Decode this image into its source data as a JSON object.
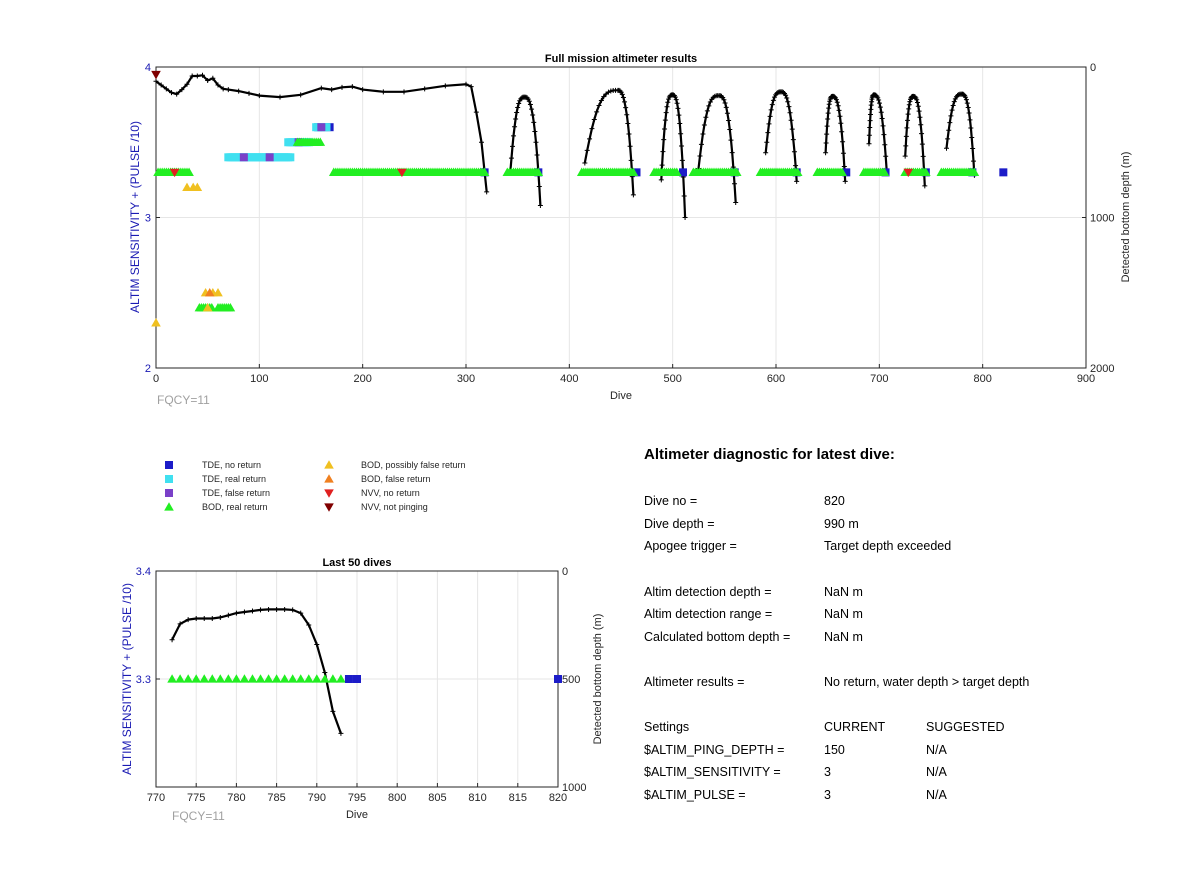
{
  "chart_data": [
    {
      "type": "scatter",
      "title": "Full mission altimeter results",
      "xlabel": "Dive",
      "ylabel": "ALTIM SENSITIVITY + (PULSE /10)",
      "y2label": "Detected bottom depth (m)",
      "xlim": [
        0,
        900
      ],
      "ylim": [
        2,
        4
      ],
      "y2lim": [
        0,
        2000
      ],
      "y2_reversed": true,
      "xticks": [
        "0",
        "100",
        "200",
        "300",
        "400",
        "500",
        "600",
        "700",
        "800",
        "900"
      ],
      "yticks": [
        "2",
        "3",
        "4"
      ],
      "y2ticks": [
        "0",
        "1000",
        "2000"
      ],
      "grid": true,
      "annotation": "FQCY=11",
      "series": [
        {
          "name": "TDE, no return",
          "color": "#1c1cc8",
          "marker": "square",
          "points": [
            [
              157,
              3.6
            ],
            [
              168,
              3.6
            ],
            [
              318,
              3.3
            ],
            [
              370,
              3.3
            ],
            [
              465,
              3.3
            ],
            [
              510,
              3.3
            ],
            [
              560,
              3.3
            ],
            [
              620,
              3.3
            ],
            [
              668,
              3.3
            ],
            [
              706,
              3.3
            ],
            [
              745,
              3.3
            ],
            [
              790,
              3.3
            ],
            [
              820,
              3.3
            ]
          ]
        },
        {
          "name": "TDE, real return",
          "color": "#40e0f0",
          "marker": "square",
          "x_ranges": [
            [
              70,
              130,
              3.4
            ],
            [
              128,
              148,
              3.5
            ],
            [
              155,
              165,
              3.6
            ]
          ]
        },
        {
          "name": "TDE, false return",
          "color": "#7a40c8",
          "marker": "square",
          "points": [
            [
              85,
              3.4
            ],
            [
              110,
              3.4
            ],
            [
              138,
              3.5
            ],
            [
              160,
              3.6
            ]
          ]
        },
        {
          "name": "BOD, real return",
          "color": "#22ee22",
          "marker": "triangle-up",
          "x_ranges": [
            [
              2,
              33,
              3.3
            ],
            [
              42,
              55,
              2.4
            ],
            [
              60,
              72,
              2.4
            ],
            [
              137,
              160,
              3.5
            ],
            [
              172,
              318,
              3.3
            ],
            [
              340,
              370,
              3.3
            ],
            [
              412,
              462,
              3.3
            ],
            [
              482,
              505,
              3.3
            ],
            [
              520,
              562,
              3.3
            ],
            [
              585,
              622,
              3.3
            ],
            [
              640,
              665,
              3.3
            ],
            [
              685,
              706,
              3.3
            ],
            [
              725,
              745,
              3.3
            ],
            [
              760,
              793,
              3.3
            ]
          ]
        },
        {
          "name": "BOD, possibly false return",
          "color": "#f0c020",
          "marker": "triangle-up",
          "points": [
            [
              0,
              2.3
            ],
            [
              30,
              3.2
            ],
            [
              36,
              3.2
            ],
            [
              40,
              3.2
            ],
            [
              48,
              2.5
            ],
            [
              55,
              2.5
            ],
            [
              60,
              2.5
            ],
            [
              50,
              2.4
            ]
          ]
        },
        {
          "name": "BOD, false return",
          "color": "#f08020",
          "marker": "triangle-up",
          "points": [
            [
              52,
              2.5
            ]
          ]
        },
        {
          "name": "NVV, no return",
          "color": "#e02020",
          "marker": "triangle-down",
          "points": [
            [
              18,
              3.3
            ],
            [
              238,
              3.3
            ],
            [
              728,
              3.3
            ]
          ]
        },
        {
          "name": "NVV, not pinging",
          "color": "#800000",
          "marker": "triangle-down",
          "points": [
            [
              0,
              3.95
            ]
          ]
        }
      ],
      "depth_track": {
        "axis": "y2",
        "unit": "m",
        "surface_points": [
          [
            0,
            95
          ],
          [
            5,
            120
          ],
          [
            10,
            145
          ],
          [
            15,
            170
          ],
          [
            20,
            180
          ],
          [
            25,
            150
          ],
          [
            30,
            115
          ],
          [
            35,
            60
          ],
          [
            40,
            60
          ],
          [
            45,
            55
          ],
          [
            50,
            90
          ],
          [
            55,
            75
          ],
          [
            60,
            120
          ],
          [
            65,
            145
          ],
          [
            70,
            150
          ],
          [
            80,
            160
          ],
          [
            90,
            175
          ],
          [
            100,
            190
          ],
          [
            120,
            200
          ],
          [
            140,
            185
          ],
          [
            160,
            140
          ],
          [
            170,
            150
          ],
          [
            180,
            135
          ],
          [
            190,
            130
          ],
          [
            200,
            150
          ],
          [
            220,
            165
          ],
          [
            240,
            165
          ],
          [
            260,
            145
          ],
          [
            280,
            125
          ],
          [
            300,
            115
          ],
          [
            305,
            130
          ],
          [
            310,
            300
          ],
          [
            315,
            500
          ],
          [
            320,
            830
          ]
        ],
        "dives": [
          {
            "start": 343,
            "peak_x": 357,
            "peak_depth": 200,
            "end": 372,
            "max_depth": 920
          },
          {
            "start": 415,
            "peak_x": 447,
            "peak_depth": 155,
            "end": 462,
            "max_depth": 850
          },
          {
            "start": 489,
            "peak_x": 500,
            "peak_depth": 185,
            "end": 512,
            "max_depth": 1000
          },
          {
            "start": 525,
            "peak_x": 545,
            "peak_depth": 190,
            "end": 561,
            "max_depth": 900
          },
          {
            "start": 590,
            "peak_x": 605,
            "peak_depth": 165,
            "end": 620,
            "max_depth": 760
          },
          {
            "start": 648,
            "peak_x": 655,
            "peak_depth": 195,
            "end": 667,
            "max_depth": 760
          },
          {
            "start": 690,
            "peak_x": 695,
            "peak_depth": 185,
            "end": 707,
            "max_depth": 680
          },
          {
            "start": 725,
            "peak_x": 733,
            "peak_depth": 195,
            "end": 744,
            "max_depth": 790
          },
          {
            "start": 765,
            "peak_x": 780,
            "peak_depth": 180,
            "end": 792,
            "max_depth": 720
          }
        ]
      }
    },
    {
      "type": "scatter",
      "title": "Last 50 dives",
      "xlabel": "Dive",
      "ylabel": "ALTIM SENSITIVITY + (PULSE /10)",
      "y2label": "Detected bottom depth (m)",
      "xlim": [
        770,
        820
      ],
      "ylim": [
        3.2,
        3.4
      ],
      "y2lim": [
        0,
        1000
      ],
      "y2_reversed": true,
      "xticks": [
        "770",
        "775",
        "780",
        "785",
        "790",
        "795",
        "800",
        "805",
        "810",
        "815",
        "820"
      ],
      "yticks": [
        "3.3",
        "3.4"
      ],
      "y2ticks": [
        "0",
        "500",
        "1000"
      ],
      "grid": true,
      "annotation": "FQCY=11",
      "series": [
        {
          "name": "BOD, real return",
          "color": "#22ee22",
          "marker": "triangle-up",
          "points": [
            [
              772,
              3.3
            ],
            [
              773,
              3.3
            ],
            [
              774,
              3.3
            ],
            [
              775,
              3.3
            ],
            [
              776,
              3.3
            ],
            [
              777,
              3.3
            ],
            [
              778,
              3.3
            ],
            [
              779,
              3.3
            ],
            [
              780,
              3.3
            ],
            [
              781,
              3.3
            ],
            [
              782,
              3.3
            ],
            [
              783,
              3.3
            ],
            [
              784,
              3.3
            ],
            [
              785,
              3.3
            ],
            [
              786,
              3.3
            ],
            [
              787,
              3.3
            ],
            [
              788,
              3.3
            ],
            [
              789,
              3.3
            ],
            [
              790,
              3.3
            ],
            [
              791,
              3.3
            ],
            [
              792,
              3.3
            ],
            [
              793,
              3.3
            ]
          ]
        },
        {
          "name": "TDE, no return",
          "color": "#1c1cc8",
          "marker": "square",
          "points": [
            [
              794,
              3.3
            ],
            [
              795,
              3.3
            ],
            [
              820,
              3.3
            ]
          ]
        }
      ],
      "depth_track": {
        "axis": "y2",
        "unit": "m",
        "points": [
          [
            772,
            318
          ],
          [
            773,
            245
          ],
          [
            774,
            225
          ],
          [
            775,
            220
          ],
          [
            776,
            220
          ],
          [
            777,
            220
          ],
          [
            778,
            215
          ],
          [
            779,
            205
          ],
          [
            780,
            195
          ],
          [
            781,
            190
          ],
          [
            782,
            185
          ],
          [
            783,
            180
          ],
          [
            784,
            178
          ],
          [
            785,
            178
          ],
          [
            786,
            178
          ],
          [
            787,
            180
          ],
          [
            788,
            195
          ],
          [
            789,
            250
          ],
          [
            790,
            340
          ],
          [
            791,
            470
          ],
          [
            792,
            650
          ],
          [
            793,
            752
          ]
        ]
      }
    }
  ],
  "legend": {
    "left": [
      {
        "label": "TDE, no return",
        "color": "#1c1cc8",
        "marker": "square"
      },
      {
        "label": "TDE, real return",
        "color": "#40e0f0",
        "marker": "square"
      },
      {
        "label": "TDE, false return",
        "color": "#7a40c8",
        "marker": "square"
      },
      {
        "label": "BOD, real return",
        "color": "#22ee22",
        "marker": "triangle-up"
      }
    ],
    "right": [
      {
        "label": "BOD, possibly false return",
        "color": "#f0c020",
        "marker": "triangle-up"
      },
      {
        "label": "BOD, false return",
        "color": "#f08020",
        "marker": "triangle-up"
      },
      {
        "label": "NVV, no return",
        "color": "#e02020",
        "marker": "triangle-down"
      },
      {
        "label": "NVV, not pinging",
        "color": "#800000",
        "marker": "triangle-down"
      }
    ]
  },
  "diagnostic": {
    "title": "Altimeter diagnostic for latest dive:",
    "dive_no_label": "Dive no =",
    "dive_no": "820",
    "dive_depth_label": "Dive depth =",
    "dive_depth": "990 m",
    "apogee_label": "Apogee trigger =",
    "apogee": "Target depth exceeded",
    "altim_det_depth_label": "Altim detection depth =",
    "altim_det_depth": "NaN m",
    "altim_det_range_label": "Altim detection range =",
    "altim_det_range": "NaN m",
    "calc_bottom_label": "Calculated bottom depth =",
    "calc_bottom": "NaN m",
    "results_label": "Altimeter results =",
    "results": "No return, water depth > target depth",
    "settings_label": "Settings",
    "current_label": "CURRENT",
    "suggested_label": "SUGGESTED",
    "settings": [
      {
        "name": "$ALTIM_PING_DEPTH =",
        "current": "150",
        "suggested": "N/A"
      },
      {
        "name": "$ALTIM_SENSITIVITY =",
        "current": "3",
        "suggested": "N/A"
      },
      {
        "name": "$ALTIM_PULSE =",
        "current": "3",
        "suggested": "N/A"
      }
    ]
  }
}
